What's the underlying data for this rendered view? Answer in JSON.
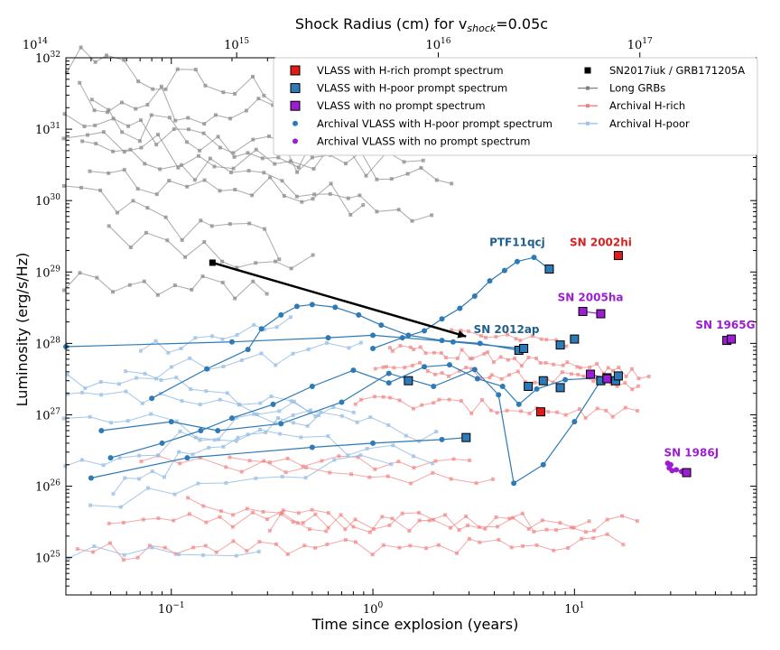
{
  "chart_data": {
    "type": "scatter",
    "title": "Shock Radius (cm) for v_shock=0.05c",
    "xlabel": "Time since explosion (years)",
    "ylabel": "Luminosity (erg/s/Hz)",
    "xscale": "log",
    "yscale": "log",
    "xlim": [
      0.03,
      80
    ],
    "ylim": [
      3e+24,
      1e+32
    ],
    "x_ticks": [
      {
        "value": 0.1,
        "base": "10",
        "exp": "−1"
      },
      {
        "value": 1,
        "base": "10",
        "exp": "0"
      },
      {
        "value": 10,
        "base": "10",
        "exp": "1"
      }
    ],
    "y_ticks": [
      {
        "value": 1e+25,
        "base": "10",
        "exp": "25"
      },
      {
        "value": 1e+26,
        "base": "10",
        "exp": "26"
      },
      {
        "value": 1e+27,
        "base": "10",
        "exp": "27"
      },
      {
        "value": 1e+28,
        "base": "10",
        "exp": "28"
      },
      {
        "value": 1e+29,
        "base": "10",
        "exp": "29"
      },
      {
        "value": 1e+30,
        "base": "10",
        "exp": "30"
      },
      {
        "value": 1e+31,
        "base": "10",
        "exp": "31"
      },
      {
        "value": 1e+32,
        "base": "10",
        "exp": "32"
      }
    ],
    "top_axis": {
      "label": "Shock Radius (cm) for v",
      "label_sub": "shock",
      "label_tail": "=0.05c",
      "ticks": [
        {
          "years": 0.0211,
          "base": "10",
          "exp": "14"
        },
        {
          "years": 0.211,
          "base": "10",
          "exp": "15"
        },
        {
          "years": 2.11,
          "base": "10",
          "exp": "16"
        },
        {
          "years": 21.1,
          "base": "10",
          "exp": "17"
        }
      ]
    },
    "legend": {
      "placement": "top-right",
      "left_column": [
        {
          "label": "VLASS with H-rich prompt spectrum",
          "marker": "square",
          "color": "#e31a1c"
        },
        {
          "label": "VLASS with H-poor prompt spectrum",
          "marker": "square",
          "color": "#2e7ab6"
        },
        {
          "label": "VLASS with no prompt spectrum",
          "marker": "square",
          "color": "#9b1fd1"
        },
        {
          "label": "Archival VLASS with H-poor prompt spectrum",
          "marker": "circle",
          "color": "#2e7ab6"
        },
        {
          "label": "Archival VLASS with no prompt spectrum",
          "marker": "circle",
          "color": "#9b1fd1"
        }
      ],
      "right_column": [
        {
          "label": "SN2017iuk / GRB171205A",
          "marker": "square-black",
          "color": "#000000"
        },
        {
          "label": "Long GRBs",
          "marker": "line-gray",
          "color": "#808080"
        },
        {
          "label": "Archival H-rich",
          "marker": "line-red",
          "color": "#f08080"
        },
        {
          "label": "Archival H-poor",
          "marker": "line-blue",
          "color": "#9ec2e6"
        }
      ]
    },
    "vlass_hrich": [
      {
        "name": "SN 2002hi",
        "x": 16.5,
        "y": 1.7e+29
      },
      {
        "name": "",
        "x": 6.8,
        "y": 1.1e+27
      }
    ],
    "vlass_hpoor": [
      {
        "x": 7.5,
        "y": 1.1e+29
      },
      {
        "x": 5.3,
        "y": 8e+27
      },
      {
        "x": 5.6,
        "y": 8.5e+27
      },
      {
        "x": 8.5,
        "y": 9.5e+27
      },
      {
        "x": 10,
        "y": 1.15e+28
      },
      {
        "x": 1.5,
        "y": 3e+27
      },
      {
        "x": 2.9,
        "y": 4.8e+26
      },
      {
        "x": 5.9,
        "y": 2.5e+27
      },
      {
        "x": 7,
        "y": 3e+27
      },
      {
        "x": 8.5,
        "y": 2.4e+27
      },
      {
        "x": 13.5,
        "y": 3e+27
      },
      {
        "x": 14.5,
        "y": 3.3e+27
      },
      {
        "x": 16,
        "y": 3e+27
      },
      {
        "x": 16.5,
        "y": 3.5e+27
      }
    ],
    "vlass_none": [
      {
        "x": 11,
        "y": 2.8e+28
      },
      {
        "x": 13.5,
        "y": 2.6e+28
      },
      {
        "x": 57,
        "y": 1.1e+28
      },
      {
        "x": 60,
        "y": 1.15e+28
      },
      {
        "x": 12,
        "y": 3.7e+27
      },
      {
        "x": 14.5,
        "y": 3.2e+27
      },
      {
        "x": 36,
        "y": 1.55e+26
      }
    ],
    "annotations": [
      {
        "text": "PTF11qcj",
        "x": 5.2,
        "y": 2.3e+29,
        "color": "#1f5f8b"
      },
      {
        "text": "SN 2002hi",
        "x": 13.5,
        "y": 2.3e+29,
        "color": "#d62020"
      },
      {
        "text": "SN 2005ha",
        "x": 12,
        "y": 3.9e+28,
        "color": "#9b1fd1"
      },
      {
        "text": "SN 2012ap",
        "x": 4.6,
        "y": 1.4e+28,
        "color": "#1f5f8b"
      },
      {
        "text": "SN 1965G",
        "x": 56,
        "y": 1.6e+28,
        "color": "#9b1fd1"
      },
      {
        "text": "SN 1986J",
        "x": 38,
        "y": 2.6e+26,
        "color": "#9b1fd1"
      }
    ],
    "sn2017iuk": {
      "start": {
        "x": 0.16,
        "y": 1.35e+29
      },
      "end": {
        "x": 2.9,
        "y": 1.25e+28
      }
    },
    "archival_hpoor_circle_tracks": [
      {
        "name": "PTF11qcj",
        "points": [
          [
            1.0,
            8.5e+27
          ],
          [
            1.4,
            1.2e+28
          ],
          [
            1.8,
            1.5e+28
          ],
          [
            2.2,
            2.2e+28
          ],
          [
            2.7,
            3.1e+28
          ],
          [
            3.2,
            4.6e+28
          ],
          [
            3.8,
            7.5e+28
          ],
          [
            4.5,
            1.05e+29
          ],
          [
            5.2,
            1.4e+29
          ],
          [
            6.3,
            1.6e+29
          ],
          [
            7.5,
            1.1e+29
          ]
        ]
      },
      {
        "name": "SN 2012ap",
        "points": [
          [
            0.08,
            1.7e+27
          ],
          [
            0.15,
            4.4e+27
          ],
          [
            0.24,
            8.2e+27
          ],
          [
            0.28,
            1.6e+28
          ],
          [
            0.35,
            2.5e+28
          ],
          [
            0.42,
            3.3e+28
          ],
          [
            0.5,
            3.5e+28
          ],
          [
            0.65,
            3.2e+28
          ],
          [
            0.85,
            2.5e+28
          ],
          [
            1.1,
            1.8e+28
          ],
          [
            1.5,
            1.3e+28
          ],
          [
            2.2,
            1.1e+28
          ],
          [
            3.4,
            1e+28
          ],
          [
            5.3,
            8e+27
          ]
        ]
      },
      {
        "name": "",
        "points": [
          [
            0.03,
            9e+27
          ],
          [
            0.2,
            1.05e+28
          ],
          [
            0.6,
            1.2e+28
          ],
          [
            1.0,
            1.3e+28
          ],
          [
            2.5,
            1.05e+28
          ],
          [
            5.5,
            8.5e+27
          ]
        ]
      },
      {
        "name": "",
        "points": [
          [
            0.04,
            1.3e+26
          ],
          [
            0.12,
            2.5e+26
          ],
          [
            0.5,
            3.5e+26
          ],
          [
            1.0,
            4e+26
          ],
          [
            2.2,
            4.5e+26
          ],
          [
            2.9,
            4.8e+26
          ]
        ]
      },
      {
        "name": "",
        "points": [
          [
            0.045,
            6e+26
          ],
          [
            0.1,
            8e+26
          ],
          [
            0.17,
            6e+26
          ],
          [
            0.35,
            7.5e+26
          ],
          [
            0.7,
            1.5e+27
          ],
          [
            1.2,
            3.8e+27
          ],
          [
            2.0,
            2.5e+27
          ],
          [
            3.2,
            4.3e+27
          ],
          [
            4.2,
            1.9e+27
          ],
          [
            5.0,
            1.1e+26
          ],
          [
            7.0,
            2e+26
          ],
          [
            10,
            8e+26
          ],
          [
            13.5,
            3e+27
          ]
        ]
      },
      {
        "name": "",
        "points": [
          [
            0.05,
            2.5e+26
          ],
          [
            0.09,
            4e+26
          ],
          [
            0.14,
            6e+26
          ],
          [
            0.2,
            9e+26
          ],
          [
            0.32,
            1.4e+27
          ],
          [
            0.5,
            2.5e+27
          ],
          [
            0.8,
            4.2e+27
          ],
          [
            1.2,
            2.8e+27
          ],
          [
            1.8,
            4.7e+27
          ],
          [
            2.4,
            5e+27
          ],
          [
            3.3,
            3.2e+27
          ],
          [
            4.4,
            2.5e+27
          ],
          [
            5.3,
            1.4e+27
          ],
          [
            6.5,
            2.3e+27
          ],
          [
            9,
            3.1e+27
          ],
          [
            14.5,
            3.3e+27
          ]
        ]
      }
    ]
  }
}
